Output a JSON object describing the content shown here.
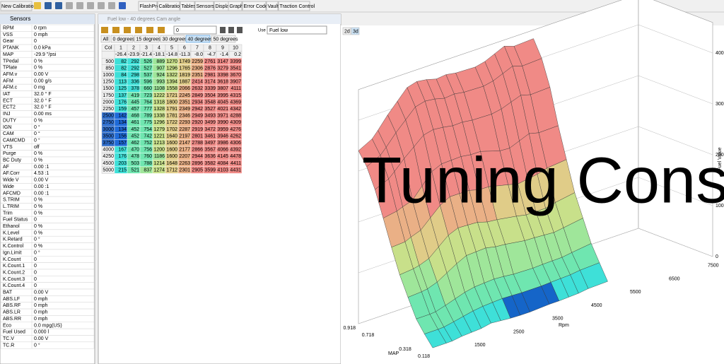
{
  "toolbar": {
    "file_button": "New Calibration...",
    "menu": [
      "FlashPro",
      "Calibration",
      "Tables",
      "Sensors",
      "Display",
      "Graph",
      "Error Codes",
      "Vault",
      "Traction Control"
    ]
  },
  "sensors": {
    "title": "Sensors",
    "rows": [
      [
        "RPM",
        "0 rpm"
      ],
      [
        "VSS",
        "0 mph"
      ],
      [
        "Gear",
        "0"
      ],
      [
        "PTANK",
        "0.0 kPa"
      ],
      [
        "MAP",
        "-29.9 \"/psi"
      ],
      [
        "TPedal",
        "0 %"
      ],
      [
        "TPlate",
        "0 %"
      ],
      [
        "AFM.v",
        "0.00 V"
      ],
      [
        "AFM",
        "0.00 g/s"
      ],
      [
        "AFM.c",
        "0 mg"
      ],
      [
        "IAT",
        "32.0 ° F"
      ],
      [
        "ECT",
        "32.0 ° F"
      ],
      [
        "ECT2",
        "32.0 ° F"
      ],
      [
        "INJ",
        "0.00 ms"
      ],
      [
        "DUTY",
        "0 %"
      ],
      [
        "IGN",
        "0 °"
      ],
      [
        "CAM",
        "0 °"
      ],
      [
        "CAMCMD",
        "0 °"
      ],
      [
        "VTS",
        "off"
      ],
      [
        "Purge",
        "0 %"
      ],
      [
        "BC Duty",
        "0 %"
      ],
      [
        "AF",
        "0.00 :1"
      ],
      [
        "AF.Corr",
        "4.53 :1"
      ],
      [
        "Wide V",
        "0.00 V"
      ],
      [
        "Wide",
        "0.00 :1"
      ],
      [
        "AFCMD",
        "0.00 :1"
      ],
      [
        "S.TRIM",
        "0 %"
      ],
      [
        "L.TRIM",
        "0 %"
      ],
      [
        "Trim",
        "0 %"
      ],
      [
        "Fuel Status",
        "0"
      ],
      [
        "Ethanol",
        "0 %"
      ],
      [
        "K.Level",
        "0 %"
      ],
      [
        "K.Retard",
        "0 °"
      ],
      [
        "K.Control",
        "0 %"
      ],
      [
        "Ign.Limit",
        "0 °"
      ],
      [
        "K.Count",
        "0"
      ],
      [
        "K.Count.1",
        "0"
      ],
      [
        "K.Count.2",
        "0"
      ],
      [
        "K.Count.3",
        "0"
      ],
      [
        "K.Count.4",
        "0"
      ],
      [
        "BAT",
        "0.00 V"
      ],
      [
        "ABS.LF",
        "0 mph"
      ],
      [
        "ABS.RF",
        "0 mph"
      ],
      [
        "ABS.LR",
        "0 mph"
      ],
      [
        "ABS.RR",
        "0 mph"
      ],
      [
        "Eco",
        "0.0 mpg(US)"
      ],
      [
        "Fuel Used",
        "0.000 l"
      ],
      [
        "TC.V",
        "0.00 V"
      ],
      [
        "TC.R",
        "0 °"
      ]
    ]
  },
  "table_window": {
    "title": "Fuel low - 40 degrees Cam angle",
    "input": "0",
    "use_label": "Use",
    "use_value": "Fuel low",
    "tabs": [
      "All",
      "0 degrees",
      "15 degrees",
      "30 degrees",
      "40 degrees",
      "50 degrees"
    ],
    "column_header": "Col",
    "columns": [
      1,
      2,
      3,
      4,
      5,
      6,
      7,
      8,
      9,
      10
    ],
    "map_row": [
      "-26.4",
      "-23.9",
      "-21.4",
      "-18.1",
      "-14.8",
      "-11.3",
      "-8.0",
      "-4.7",
      "-1.4",
      "0.2"
    ],
    "rows": [
      {
        "rpm": 500,
        "values": [
          82,
          292,
          526,
          889,
          1270,
          1749,
          2259,
          2761,
          3147,
          3399
        ]
      },
      {
        "rpm": 850,
        "values": [
          82,
          292,
          527,
          907,
          1296,
          1765,
          2306,
          2876,
          3279,
          3541
        ]
      },
      {
        "rpm": 1000,
        "values": [
          84,
          298,
          537,
          924,
          1322,
          1819,
          2351,
          2981,
          3398,
          3670
        ]
      },
      {
        "rpm": 1250,
        "values": [
          113,
          336,
          596,
          993,
          1394,
          1887,
          2414,
          3174,
          3618,
          3907
        ]
      },
      {
        "rpm": 1500,
        "values": [
          125,
          378,
          660,
          1108,
          1558,
          2066,
          2632,
          3339,
          3807,
          4111
        ]
      },
      {
        "rpm": 1750,
        "values": [
          137,
          419,
          723,
          1222,
          1721,
          2245,
          2849,
          3504,
          3995,
          4315
        ]
      },
      {
        "rpm": 2000,
        "values": [
          176,
          445,
          764,
          1318,
          1800,
          2351,
          2934,
          3548,
          4045,
          4369
        ]
      },
      {
        "rpm": 2250,
        "values": [
          159,
          457,
          777,
          1328,
          1791,
          2349,
          2942,
          3527,
          4021,
          4342
        ]
      },
      {
        "rpm": 2500,
        "values": [
          142,
          468,
          789,
          1338,
          1781,
          2346,
          2949,
          3493,
          3971,
          4288
        ]
      },
      {
        "rpm": 2750,
        "values": [
          134,
          461,
          775,
          1296,
          1722,
          2293,
          2920,
          3499,
          3990,
          4309
        ]
      },
      {
        "rpm": 3000,
        "values": [
          134,
          452,
          754,
          1279,
          1702,
          2287,
          2919,
          3472,
          3959,
          4276
        ]
      },
      {
        "rpm": 3500,
        "values": [
          156,
          452,
          742,
          1221,
          1640,
          2197,
          2801,
          3461,
          3946,
          4262
        ]
      },
      {
        "rpm": 3750,
        "values": [
          157,
          462,
          752,
          1213,
          1600,
          2147,
          2788,
          3497,
          3986,
          4306
        ]
      },
      {
        "rpm": 4000,
        "values": [
          167,
          470,
          756,
          1200,
          1600,
          2177,
          2866,
          3567,
          4066,
          4392
        ]
      },
      {
        "rpm": 4250,
        "values": [
          176,
          478,
          760,
          1186,
          1600,
          2207,
          2944,
          3636,
          4145,
          4478
        ]
      },
      {
        "rpm": 4500,
        "values": [
          203,
          503,
          788,
          1214,
          1648,
          2263,
          2896,
          3582,
          4084,
          4411
        ]
      },
      {
        "rpm": 5000,
        "values": [
          215,
          521,
          837,
          1274,
          1712,
          2301,
          2905,
          3599,
          4103,
          4431
        ]
      }
    ]
  },
  "graph": {
    "tabs": [
      "2d",
      "3d"
    ],
    "x_label": "Rpm",
    "y_label": "MAP",
    "z_label": "Fuel Value",
    "x_ticks": [
      1500,
      2500,
      3500,
      4500,
      5500,
      6500,
      7500
    ],
    "y_ticks": [
      0.118,
      0.318,
      0.718,
      0.918
    ],
    "z_ticks": [
      0,
      1000,
      2000,
      3000,
      4000
    ]
  },
  "watermark": "Tuning Consultation"
}
